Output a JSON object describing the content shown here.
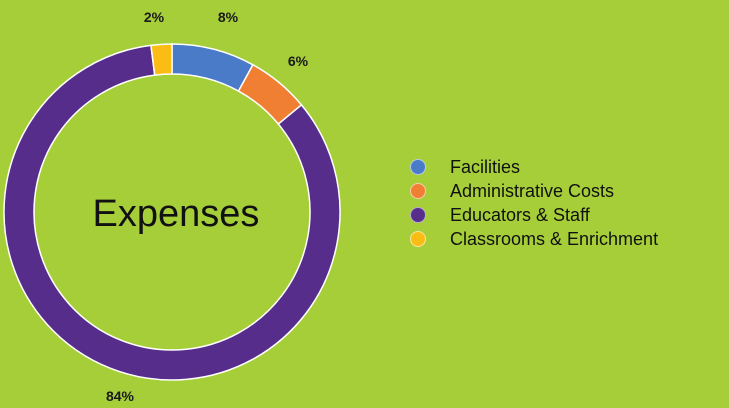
{
  "chart_data": {
    "type": "pie",
    "style": "donut",
    "title": "Expenses",
    "legend_position": "right",
    "categories": [
      "Facilities",
      "Administrative Costs",
      "Educators & Staff",
      "Classrooms & Enrichment"
    ],
    "values": [
      8,
      6,
      84,
      2
    ],
    "labels": [
      "8%",
      "6%",
      "84%",
      "2%"
    ],
    "colors": [
      "#4a7bc8",
      "#f07f33",
      "#572d8c",
      "#fbbd13"
    ]
  }
}
